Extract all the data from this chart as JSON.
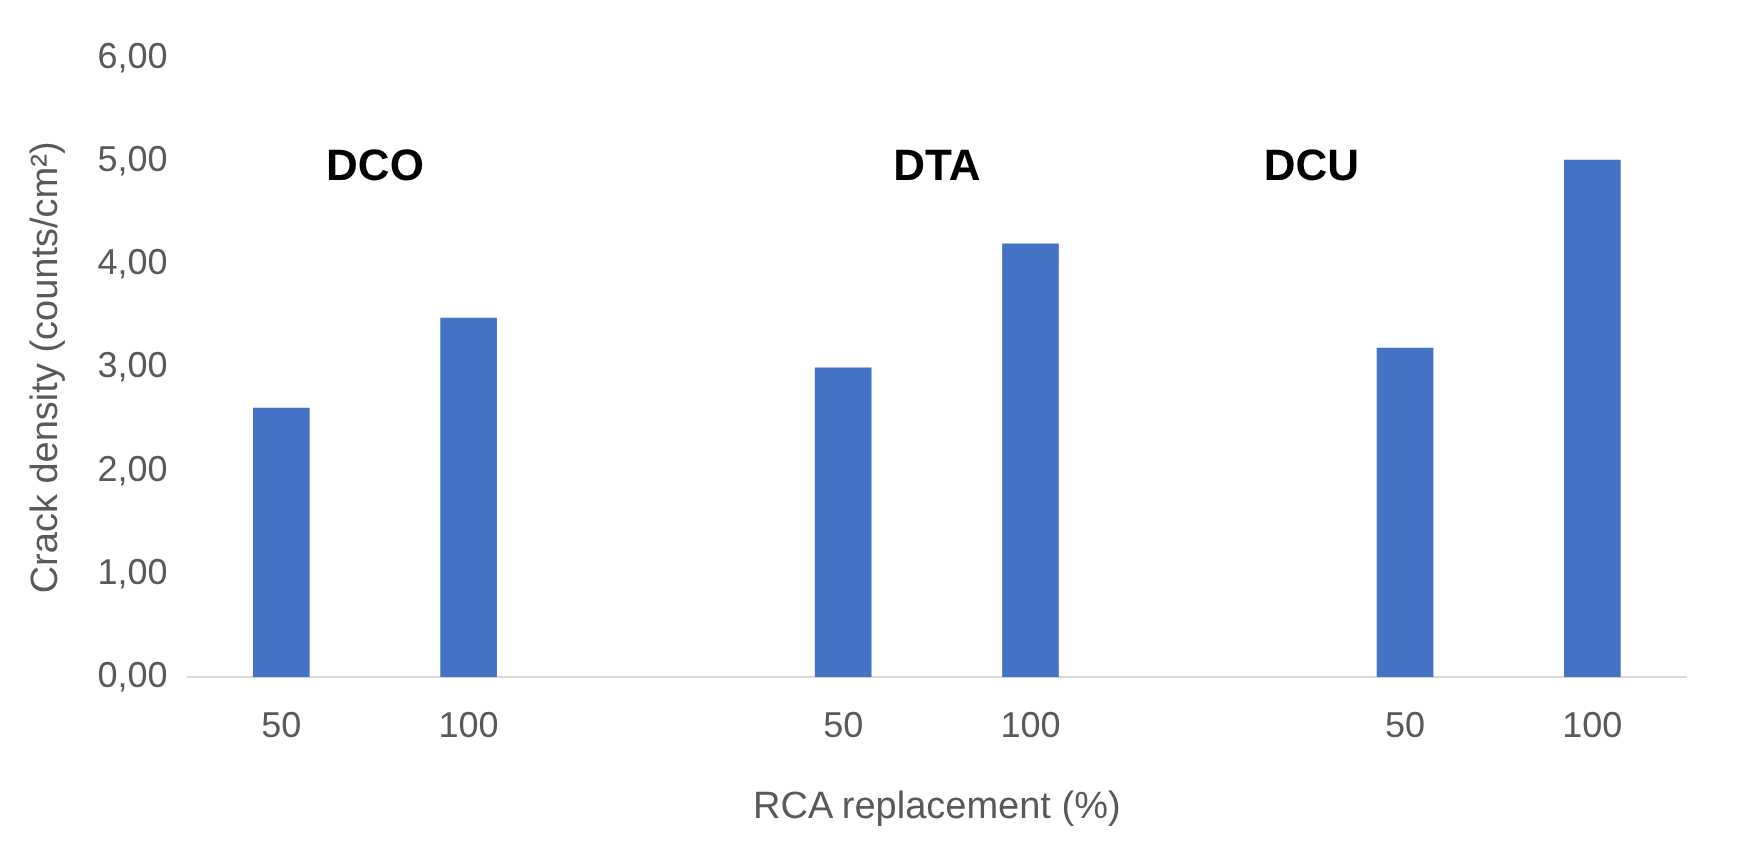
{
  "chart_data": {
    "type": "bar",
    "xlabel": "RCA replacement (%)",
    "ylabel": "Crack density (counts/cm²)",
    "categories": [
      "50",
      "100",
      null,
      "50",
      "100",
      null,
      "50",
      "100"
    ],
    "values": [
      2.61,
      3.48,
      null,
      3.0,
      4.2,
      null,
      3.19,
      5.01
    ],
    "color": "#4472c4",
    "ylim": [
      0,
      6
    ],
    "yticks": [
      {
        "value": 0,
        "label": "0,00"
      },
      {
        "value": 1,
        "label": "1,00"
      },
      {
        "value": 2,
        "label": "2,00"
      },
      {
        "value": 3,
        "label": "3,00"
      },
      {
        "value": 4,
        "label": "4,00"
      },
      {
        "value": 5,
        "label": "5,00"
      },
      {
        "value": 6,
        "label": "6,00"
      }
    ],
    "annotations": [
      "DCO",
      "DTA",
      "DCU"
    ],
    "grid": false,
    "legend": false
  }
}
